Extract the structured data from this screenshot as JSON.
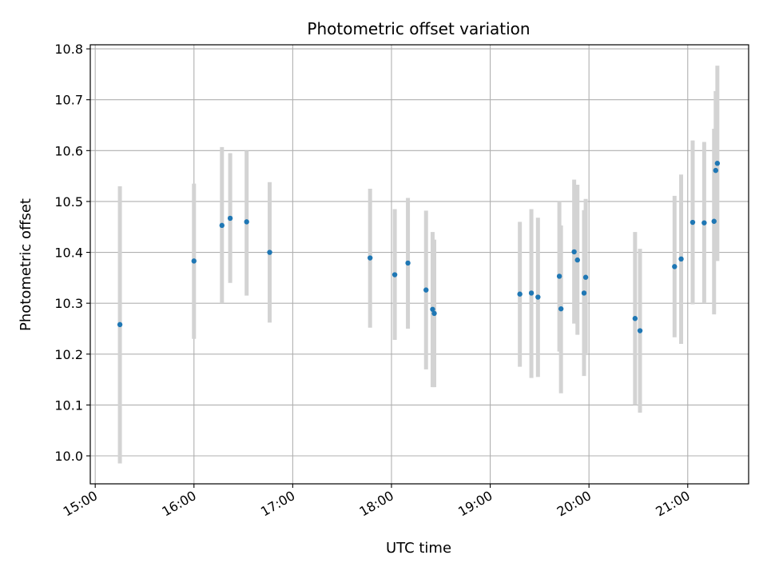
{
  "chart_data": {
    "type": "scatter",
    "title": "Photometric offset variation",
    "xlabel": "UTC time",
    "ylabel": "Photometric offset",
    "x_ticks": [
      "15:00",
      "16:00",
      "17:00",
      "18:00",
      "19:00",
      "20:00",
      "21:00"
    ],
    "y_ticks": [
      "10.0",
      "10.1",
      "10.2",
      "10.3",
      "10.4",
      "10.5",
      "10.6",
      "10.7",
      "10.8"
    ],
    "xlim": [
      "14:57",
      "21:37"
    ],
    "ylim": [
      9.945,
      10.808
    ],
    "grid": true,
    "colors": {
      "points": "#1f77b4",
      "errorbars": "#d3d3d3",
      "grid": "#b0b0b0"
    },
    "points": [
      {
        "t": "15:15",
        "y": 10.258,
        "lo": 9.985,
        "hi": 10.53
      },
      {
        "t": "16:00",
        "y": 10.383,
        "lo": 10.23,
        "hi": 10.535
      },
      {
        "t": "16:17",
        "y": 10.453,
        "lo": 10.3,
        "hi": 10.607
      },
      {
        "t": "16:22",
        "y": 10.467,
        "lo": 10.34,
        "hi": 10.595
      },
      {
        "t": "16:32",
        "y": 10.46,
        "lo": 10.315,
        "hi": 10.6
      },
      {
        "t": "16:46",
        "y": 10.4,
        "lo": 10.262,
        "hi": 10.538
      },
      {
        "t": "17:47",
        "y": 10.389,
        "lo": 10.252,
        "hi": 10.525
      },
      {
        "t": "18:02",
        "y": 10.356,
        "lo": 10.228,
        "hi": 10.485
      },
      {
        "t": "18:10",
        "y": 10.379,
        "lo": 10.25,
        "hi": 10.507
      },
      {
        "t": "18:21",
        "y": 10.326,
        "lo": 10.17,
        "hi": 10.482
      },
      {
        "t": "18:25",
        "y": 10.288,
        "lo": 10.135,
        "hi": 10.44
      },
      {
        "t": "18:26",
        "y": 10.28,
        "lo": 10.135,
        "hi": 10.425
      },
      {
        "t": "19:18",
        "y": 10.318,
        "lo": 10.175,
        "hi": 10.46
      },
      {
        "t": "19:25",
        "y": 10.32,
        "lo": 10.153,
        "hi": 10.485
      },
      {
        "t": "19:29",
        "y": 10.312,
        "lo": 10.155,
        "hi": 10.468
      },
      {
        "t": "19:42",
        "y": 10.353,
        "lo": 10.205,
        "hi": 10.5
      },
      {
        "t": "19:43",
        "y": 10.289,
        "lo": 10.123,
        "hi": 10.453
      },
      {
        "t": "19:51",
        "y": 10.401,
        "lo": 10.26,
        "hi": 10.543
      },
      {
        "t": "19:53",
        "y": 10.385,
        "lo": 10.238,
        "hi": 10.533
      },
      {
        "t": "19:57",
        "y": 10.32,
        "lo": 10.157,
        "hi": 10.483
      },
      {
        "t": "19:58",
        "y": 10.351,
        "lo": 10.198,
        "hi": 10.505
      },
      {
        "t": "20:28",
        "y": 10.27,
        "lo": 10.1,
        "hi": 10.44
      },
      {
        "t": "20:31",
        "y": 10.246,
        "lo": 10.085,
        "hi": 10.407
      },
      {
        "t": "20:52",
        "y": 10.372,
        "lo": 10.233,
        "hi": 10.511
      },
      {
        "t": "20:56",
        "y": 10.387,
        "lo": 10.22,
        "hi": 10.553
      },
      {
        "t": "21:03",
        "y": 10.459,
        "lo": 10.298,
        "hi": 10.62
      },
      {
        "t": "21:10",
        "y": 10.458,
        "lo": 10.3,
        "hi": 10.617
      },
      {
        "t": "21:16",
        "y": 10.461,
        "lo": 10.278,
        "hi": 10.643
      },
      {
        "t": "21:17",
        "y": 10.561,
        "lo": 10.405,
        "hi": 10.717
      },
      {
        "t": "21:18",
        "y": 10.575,
        "lo": 10.383,
        "hi": 10.767
      }
    ]
  }
}
